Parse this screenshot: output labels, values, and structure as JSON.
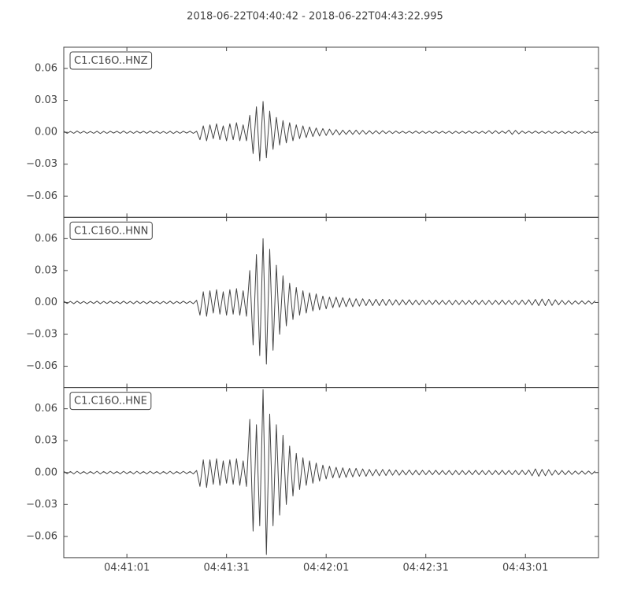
{
  "chart_data": {
    "type": "line",
    "title": "2018-06-22T04:40:42  -  2018-06-22T04:43:22.995",
    "xlim": [
      0,
      160.995
    ],
    "xticks": [
      {
        "value": 19,
        "label": "04:41:01"
      },
      {
        "value": 49,
        "label": "04:41:31"
      },
      {
        "value": 79,
        "label": "04:42:01"
      },
      {
        "value": 109,
        "label": "04:42:31"
      },
      {
        "value": 139,
        "label": "04:43:01"
      }
    ],
    "ylim": [
      -0.08,
      0.08
    ],
    "yticks": [
      0.06,
      0.03,
      {
        "value": 0,
        "label": "0.00"
      },
      {
        "value": -0.03,
        "label": "−0.03"
      },
      {
        "value": -0.06,
        "label": "−0.06"
      }
    ],
    "x": [
      0,
      1,
      2,
      3,
      4,
      5,
      6,
      7,
      8,
      9,
      10,
      11,
      12,
      13,
      14,
      15,
      16,
      17,
      18,
      19,
      20,
      21,
      22,
      23,
      24,
      25,
      26,
      27,
      28,
      29,
      30,
      31,
      32,
      33,
      34,
      35,
      36,
      37,
      38,
      39,
      40,
      41,
      42,
      43,
      44,
      45,
      46,
      47,
      48,
      49,
      50,
      51,
      52,
      53,
      54,
      55,
      56,
      57,
      58,
      59,
      60,
      61,
      62,
      63,
      64,
      65,
      66,
      67,
      68,
      69,
      70,
      71,
      72,
      73,
      74,
      75,
      76,
      77,
      78,
      79,
      80,
      81,
      82,
      83,
      84,
      85,
      86,
      87,
      88,
      89,
      90,
      91,
      92,
      93,
      94,
      95,
      96,
      97,
      98,
      99,
      100,
      101,
      102,
      103,
      104,
      105,
      106,
      107,
      108,
      109,
      110,
      111,
      112,
      113,
      114,
      115,
      116,
      117,
      118,
      119,
      120,
      121,
      122,
      123,
      124,
      125,
      126,
      127,
      128,
      129,
      130,
      131,
      132,
      133,
      134,
      135,
      136,
      137,
      138,
      139,
      140,
      141,
      142,
      143,
      144,
      145,
      146,
      147,
      148,
      149,
      150,
      151,
      152,
      153,
      154,
      155,
      156,
      157,
      158,
      159,
      160
    ],
    "series": [
      {
        "name": "C1.C16O..HNZ",
        "color": "#444444",
        "values": [
          0.001,
          -0.001,
          0.0008,
          -0.001,
          0.0012,
          -0.0009,
          0.001,
          -0.001,
          0.0008,
          -0.001,
          0.001,
          -0.0012,
          0.0009,
          -0.001,
          0.001,
          -0.0008,
          0.001,
          -0.001,
          0.0012,
          -0.001,
          0.0009,
          -0.001,
          0.001,
          -0.0008,
          0.001,
          -0.001,
          0.0012,
          -0.0009,
          0.001,
          -0.001,
          0.0008,
          -0.001,
          0.001,
          -0.0012,
          0.0009,
          -0.001,
          0.001,
          -0.0008,
          0.001,
          -0.001,
          0.001,
          -0.007,
          0.006,
          -0.008,
          0.007,
          -0.006,
          0.008,
          -0.007,
          0.006,
          -0.008,
          0.008,
          -0.007,
          0.009,
          -0.008,
          0.007,
          -0.008,
          0.016,
          -0.02,
          0.024,
          -0.027,
          0.029,
          -0.024,
          0.02,
          -0.016,
          0.014,
          -0.012,
          0.011,
          -0.01,
          0.009,
          -0.008,
          0.007,
          -0.006,
          0.006,
          -0.005,
          0.005,
          -0.004,
          0.004,
          -0.0035,
          0.0035,
          -0.003,
          0.003,
          -0.0025,
          0.0025,
          -0.0025,
          0.002,
          -0.002,
          0.002,
          -0.002,
          0.002,
          -0.0018,
          0.0018,
          -0.0018,
          0.0015,
          -0.0015,
          0.0015,
          -0.0015,
          0.0015,
          -0.0012,
          0.0012,
          -0.0012,
          0.0012,
          -0.001,
          0.001,
          -0.001,
          0.001,
          -0.001,
          0.0012,
          -0.001,
          0.001,
          -0.001,
          0.001,
          -0.001,
          0.0012,
          -0.001,
          0.001,
          -0.001,
          0.001,
          -0.0012,
          0.001,
          -0.001,
          0.001,
          -0.001,
          0.0012,
          -0.001,
          0.001,
          -0.001,
          0.001,
          -0.001,
          0.0015,
          -0.0012,
          0.0015,
          -0.0012,
          0.0012,
          -0.001,
          0.002,
          -0.002,
          0.0018,
          -0.0015,
          0.0012,
          -0.001,
          0.001,
          -0.001,
          0.0012,
          -0.001,
          0.001,
          -0.001,
          0.001,
          -0.001,
          0.001,
          -0.001,
          0.001,
          -0.0012,
          0.001,
          -0.001,
          0.001,
          -0.001,
          0.001,
          -0.001,
          0.001,
          -0.001,
          0.001
        ]
      },
      {
        "name": "C1.C16O..HNN",
        "color": "#444444",
        "values": [
          0.0012,
          -0.001,
          0.001,
          -0.0012,
          0.0012,
          -0.001,
          0.001,
          -0.0012,
          0.001,
          -0.001,
          0.0012,
          -0.0012,
          0.001,
          -0.001,
          0.0012,
          -0.001,
          0.001,
          -0.0012,
          0.0012,
          -0.001,
          0.001,
          -0.0012,
          0.0012,
          -0.001,
          0.001,
          -0.0012,
          0.0012,
          -0.001,
          0.001,
          -0.0012,
          0.001,
          -0.001,
          0.0012,
          -0.0012,
          0.001,
          -0.001,
          0.0012,
          -0.001,
          0.001,
          -0.0012,
          0.002,
          -0.012,
          0.01,
          -0.013,
          0.011,
          -0.01,
          0.012,
          -0.011,
          0.01,
          -0.012,
          0.012,
          -0.011,
          0.013,
          -0.012,
          0.011,
          -0.013,
          0.03,
          -0.04,
          0.045,
          -0.05,
          0.06,
          -0.058,
          0.05,
          -0.045,
          0.035,
          -0.03,
          0.025,
          -0.022,
          0.018,
          -0.016,
          0.014,
          -0.012,
          0.011,
          -0.01,
          0.009,
          -0.008,
          0.008,
          -0.007,
          0.006,
          -0.006,
          0.005,
          -0.005,
          0.005,
          -0.0045,
          0.0045,
          -0.004,
          0.004,
          -0.004,
          0.0035,
          -0.0035,
          0.0035,
          -0.003,
          0.003,
          -0.003,
          0.003,
          -0.003,
          0.003,
          -0.0028,
          0.0028,
          -0.0025,
          0.0025,
          -0.0025,
          0.0025,
          -0.0022,
          0.0025,
          -0.0022,
          0.0022,
          -0.0022,
          0.0022,
          -0.002,
          0.002,
          -0.002,
          0.0022,
          -0.002,
          0.002,
          -0.002,
          0.002,
          -0.0022,
          0.002,
          -0.002,
          0.002,
          -0.002,
          0.002,
          -0.002,
          0.0022,
          -0.002,
          0.002,
          -0.002,
          0.002,
          -0.002,
          0.002,
          -0.002,
          0.0022,
          -0.002,
          0.002,
          -0.002,
          0.002,
          -0.002,
          0.0022,
          -0.002,
          0.0025,
          -0.0025,
          0.0028,
          -0.003,
          0.0032,
          -0.003,
          0.003,
          -0.0028,
          0.0025,
          -0.0022,
          0.002,
          -0.002,
          0.0018,
          -0.0018,
          0.0015,
          -0.0015,
          0.0015,
          -0.0015,
          0.0015,
          -0.0015,
          0.0015
        ]
      },
      {
        "name": "C1.C16O..HNE",
        "color": "#444444",
        "values": [
          0.0012,
          -0.001,
          0.001,
          -0.0012,
          0.0012,
          -0.001,
          0.001,
          -0.0012,
          0.001,
          -0.001,
          0.0012,
          -0.0012,
          0.001,
          -0.001,
          0.0012,
          -0.001,
          0.001,
          -0.0012,
          0.0012,
          -0.001,
          0.001,
          -0.0012,
          0.0012,
          -0.001,
          0.001,
          -0.0012,
          0.0012,
          -0.001,
          0.001,
          -0.0012,
          0.001,
          -0.001,
          0.0012,
          -0.0012,
          0.001,
          -0.001,
          0.0012,
          -0.001,
          0.001,
          -0.0012,
          0.002,
          -0.013,
          0.012,
          -0.014,
          0.012,
          -0.011,
          0.013,
          -0.012,
          0.011,
          -0.01,
          0.012,
          -0.011,
          0.013,
          -0.012,
          0.011,
          -0.013,
          0.05,
          -0.055,
          0.045,
          -0.05,
          0.078,
          -0.077,
          0.055,
          -0.05,
          0.045,
          -0.04,
          0.035,
          -0.03,
          0.025,
          -0.022,
          0.018,
          -0.016,
          0.014,
          -0.012,
          0.011,
          -0.01,
          0.009,
          -0.008,
          0.007,
          -0.006,
          0.006,
          -0.005,
          0.005,
          -0.005,
          0.0045,
          -0.0045,
          0.004,
          -0.004,
          0.004,
          -0.0035,
          0.0035,
          -0.0035,
          0.003,
          -0.003,
          0.003,
          -0.003,
          0.003,
          -0.0028,
          0.0028,
          -0.0025,
          0.0025,
          -0.0025,
          0.0022,
          -0.0022,
          0.0025,
          -0.0022,
          0.0022,
          -0.0022,
          0.0022,
          -0.002,
          0.002,
          -0.002,
          0.0022,
          -0.002,
          0.002,
          -0.002,
          0.002,
          -0.0022,
          0.002,
          -0.002,
          0.002,
          -0.002,
          0.002,
          -0.002,
          0.0022,
          -0.002,
          0.002,
          -0.002,
          0.002,
          -0.002,
          0.002,
          -0.002,
          0.0022,
          -0.002,
          0.002,
          -0.002,
          0.002,
          -0.002,
          0.0022,
          -0.002,
          0.0025,
          -0.003,
          0.0035,
          -0.0035,
          0.003,
          -0.003,
          0.0028,
          -0.0025,
          0.0022,
          -0.002,
          0.002,
          -0.002,
          0.0018,
          -0.0018,
          0.0015,
          -0.0015,
          0.0015,
          -0.0015,
          0.0015,
          -0.0015,
          0.0015
        ]
      }
    ]
  }
}
